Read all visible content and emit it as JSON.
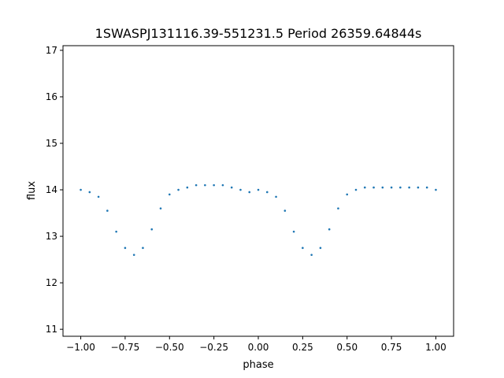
{
  "chart_data": {
    "type": "scatter",
    "title": "1SWASPJ131116.39-551231.5 Period 26359.64844s",
    "xlabel": "phase",
    "ylabel": "flux",
    "xlim": [
      -1.1,
      1.1
    ],
    "ylim": [
      10.85,
      17.1
    ],
    "xticks": [
      {
        "value": -1.0,
        "label": "−1.00"
      },
      {
        "value": -0.75,
        "label": "−0.75"
      },
      {
        "value": -0.5,
        "label": "−0.50"
      },
      {
        "value": -0.25,
        "label": "−0.25"
      },
      {
        "value": 0.0,
        "label": "0.00"
      },
      {
        "value": 0.25,
        "label": "0.25"
      },
      {
        "value": 0.5,
        "label": "0.50"
      },
      {
        "value": 0.75,
        "label": "0.75"
      },
      {
        "value": 1.0,
        "label": "1.00"
      }
    ],
    "yticks": [
      {
        "value": 11,
        "label": "11"
      },
      {
        "value": 12,
        "label": "12"
      },
      {
        "value": 13,
        "label": "13"
      },
      {
        "value": 14,
        "label": "14"
      },
      {
        "value": 15,
        "label": "15"
      },
      {
        "value": 16,
        "label": "16"
      },
      {
        "value": 17,
        "label": "17"
      }
    ],
    "grid": false,
    "legend": "none",
    "marker_color": "#1f77b4",
    "series": [
      {
        "x": [
          -1.0,
          -0.95,
          -0.9,
          -0.85,
          -0.8,
          -0.75,
          -0.7,
          -0.65,
          -0.6,
          -0.55,
          -0.5,
          -0.45,
          -0.4,
          -0.35,
          -0.3,
          -0.25,
          -0.2,
          -0.15,
          -0.1,
          -0.05,
          0.0,
          0.05,
          0.1,
          0.15,
          0.2,
          0.25,
          0.3,
          0.35,
          0.4,
          0.45,
          0.5,
          0.55,
          0.6,
          0.65,
          0.7,
          0.75,
          0.8,
          0.85,
          0.9,
          0.95,
          1.0
        ],
        "y": [
          14.0,
          13.95,
          13.85,
          13.55,
          13.1,
          12.75,
          12.6,
          12.75,
          13.15,
          13.6,
          13.9,
          14.0,
          14.05,
          14.1,
          14.1,
          14.1,
          14.1,
          14.05,
          14.0,
          13.95,
          14.0,
          13.95,
          13.85,
          13.55,
          13.1,
          12.75,
          12.6,
          12.75,
          13.15,
          13.6,
          13.9,
          14.0,
          14.05,
          14.05,
          14.05,
          14.05,
          14.05,
          14.05,
          14.05,
          14.05,
          14.0
        ]
      }
    ]
  }
}
